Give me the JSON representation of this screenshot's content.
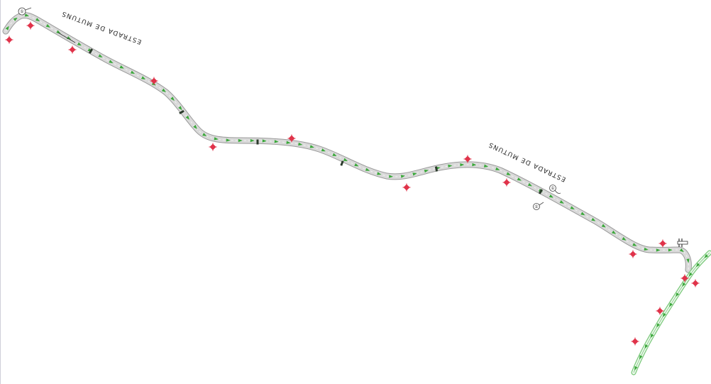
{
  "map": {
    "road_labels": [
      "ESTRADA DE MUTUNS",
      "ESTRADA DE MUTUNS"
    ],
    "callouts": [
      "①",
      "①",
      "①"
    ],
    "colors": {
      "background": "#ffffff",
      "road_fill": "#d9d9d9",
      "road_edge": "#9a9a9a",
      "lane_marking": "#f2f2f2",
      "direction_arrow": "#3aa83a",
      "side_road": "#7ac97a",
      "marker": "#e0334a",
      "frame": "#cfcfd8"
    },
    "icons": {
      "marker": "red-diamond-marker-icon",
      "arrow": "green-direction-arrow-icon",
      "sign": "road-sign-icon"
    }
  }
}
